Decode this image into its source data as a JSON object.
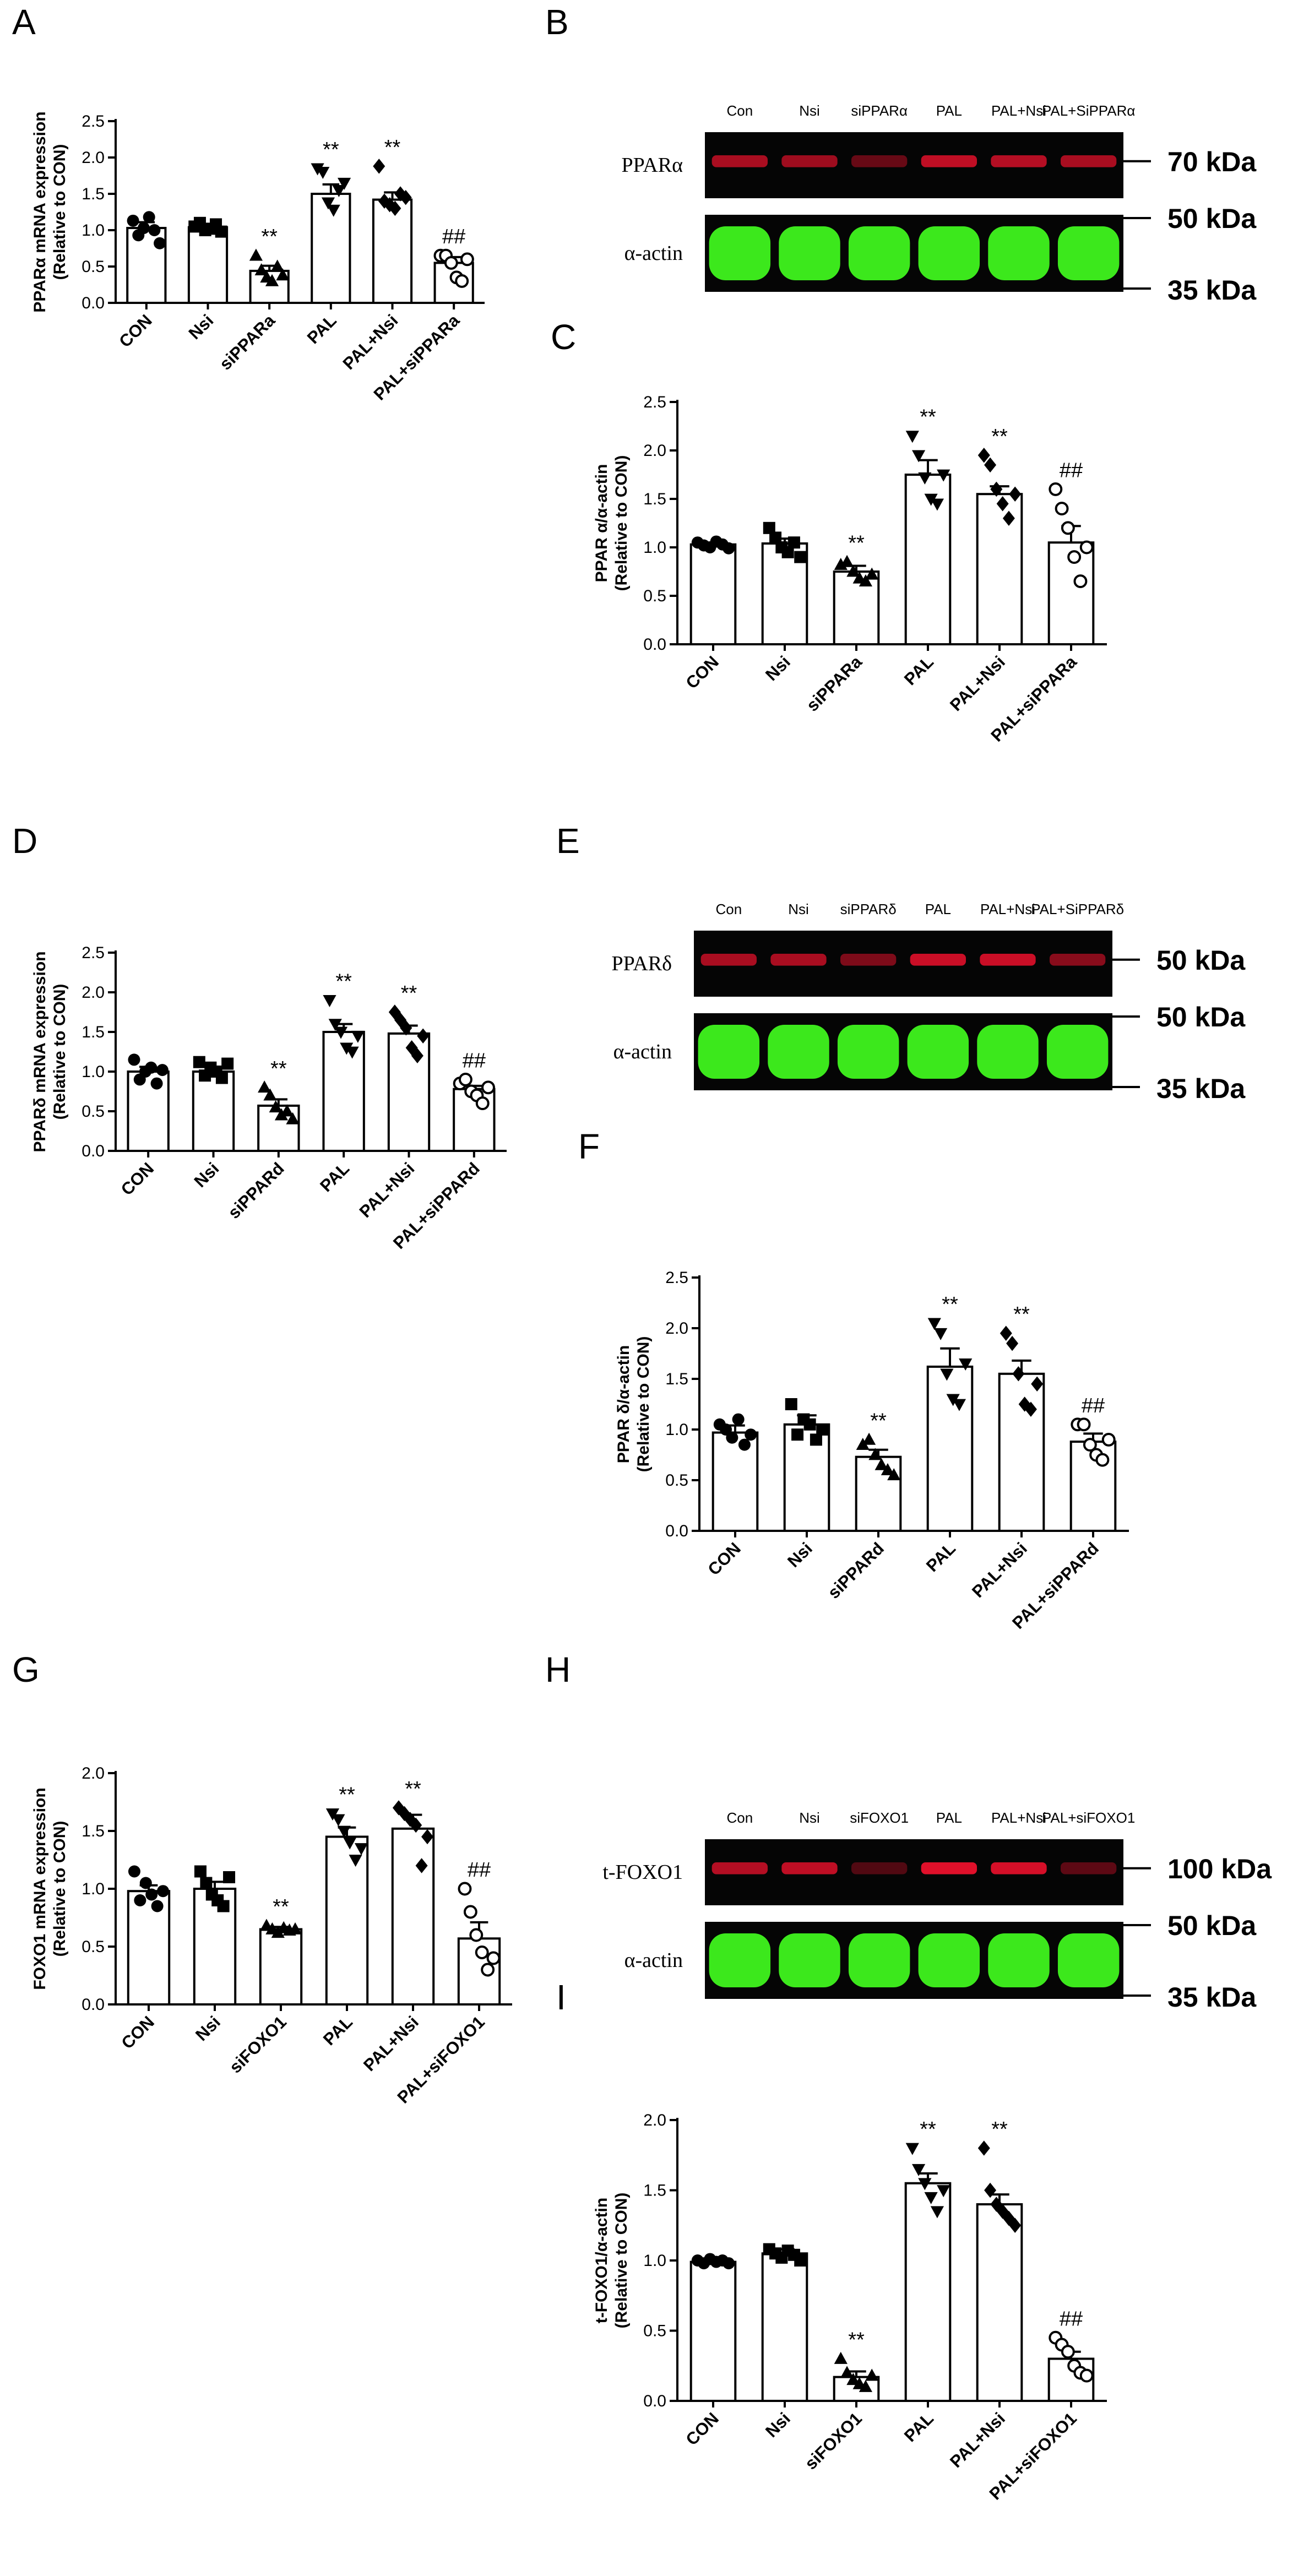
{
  "panels": {
    "a": "A",
    "b": "B",
    "c": "C",
    "d": "D",
    "e": "E",
    "f": "F",
    "g": "G",
    "h": "H",
    "i": "I"
  },
  "blots": {
    "b": {
      "lanes": [
        "Con",
        "Nsi",
        "siPPARα",
        "PAL",
        "PAL+Nsi",
        "PAL+SiPPARα"
      ],
      "top_row": "PPARα",
      "bottom_row": "α-actin",
      "top_marker": "70 kDa",
      "bottom_markers": [
        "50 kDa",
        "35 kDa"
      ],
      "top_color": "#e0102a",
      "bottom_color": "#3ce81c",
      "top_intensity": [
        0.75,
        0.7,
        0.45,
        0.85,
        0.8,
        0.75
      ]
    },
    "e": {
      "lanes": [
        "Con",
        "Nsi",
        "siPPARδ",
        "PAL",
        "PAL+Nsi",
        "PAL+SiPPARδ"
      ],
      "top_row": "PPARδ",
      "bottom_row": "α-actin",
      "top_marker": "50 kDa",
      "bottom_markers": [
        "50 kDa",
        "35 kDa"
      ],
      "top_color": "#e0102a",
      "bottom_color": "#3ce81c",
      "top_intensity": [
        0.75,
        0.75,
        0.55,
        0.9,
        0.9,
        0.6
      ]
    },
    "h": {
      "lanes": [
        "Con",
        "Nsi",
        "siFOXO1",
        "PAL",
        "PAL+Nsi",
        "PAL+siFOXO1"
      ],
      "top_row": "t-FOXO1",
      "bottom_row": "α-actin",
      "top_marker": "100 kDa",
      "bottom_markers": [
        "50 kDa",
        "35 kDa"
      ],
      "top_color": "#e0102a",
      "bottom_color": "#3ce81c",
      "top_intensity": [
        0.8,
        0.85,
        0.35,
        1.0,
        0.95,
        0.4
      ]
    }
  },
  "chart_data": [
    {
      "id": "A",
      "type": "bar",
      "categories": [
        "CON",
        "Nsi",
        "siPPARa",
        "PAL",
        "PAL+Nsi",
        "PAL+siPPARa"
      ],
      "ylabel_lines": [
        "PPARα mRNA expression",
        "(Relative to CON)"
      ],
      "ylim": [
        0,
        2.5
      ],
      "yticks": [
        0,
        0.5,
        1,
        1.5,
        2,
        2.5
      ],
      "ytick_labels": [
        "0.0",
        "0.5",
        "1.0",
        "1.5",
        "2.0",
        "2.5"
      ],
      "values": [
        1.03,
        1.04,
        0.44,
        1.5,
        1.42,
        0.55
      ],
      "sem": [
        0.08,
        0.04,
        0.07,
        0.13,
        0.1,
        0.08
      ],
      "points": [
        [
          1.13,
          0.93,
          1.03,
          1.18,
          1.0,
          0.82
        ],
        [
          1.05,
          1.1,
          1.0,
          1.02,
          1.08,
          0.98
        ],
        [
          0.65,
          0.45,
          0.35,
          0.3,
          0.5,
          0.38
        ],
        [
          1.85,
          1.8,
          1.38,
          1.28,
          1.55,
          1.65
        ],
        [
          1.88,
          1.4,
          1.35,
          1.3,
          1.5,
          1.45
        ],
        [
          0.65,
          0.65,
          0.55,
          0.35,
          0.3,
          0.6
        ]
      ],
      "markers": [
        "circle",
        "square",
        "triangle",
        "tri-down",
        "diamond",
        "open-circle"
      ],
      "annotations": [
        "",
        "",
        "**",
        "**",
        "**",
        "##"
      ]
    },
    {
      "id": "C",
      "type": "bar",
      "categories": [
        "CON",
        "Nsi",
        "siPPARa",
        "PAL",
        "PAL+Nsi",
        "PAL+siPPARa"
      ],
      "ylabel_lines": [
        "PPAR α/α-actin",
        "(Relative to CON)"
      ],
      "ylim": [
        0,
        2.5
      ],
      "yticks": [
        0,
        0.5,
        1,
        1.5,
        2,
        2.5
      ],
      "ytick_labels": [
        "0.0",
        "0.5",
        "1.0",
        "1.5",
        "2.0",
        "2.5"
      ],
      "values": [
        1.03,
        1.04,
        0.75,
        1.75,
        1.55,
        1.05
      ],
      "sem": [
        0.02,
        0.05,
        0.06,
        0.15,
        0.08,
        0.17
      ],
      "points": [
        [
          1.05,
          1.02,
          1.0,
          1.06,
          1.03,
          0.99
        ],
        [
          1.2,
          1.1,
          1.0,
          0.95,
          1.05,
          0.9
        ],
        [
          0.82,
          0.85,
          0.75,
          0.68,
          0.65,
          0.72
        ],
        [
          2.15,
          1.95,
          1.72,
          1.5,
          1.45,
          1.75
        ],
        [
          1.95,
          1.85,
          1.6,
          1.45,
          1.3,
          1.55
        ],
        [
          1.6,
          1.4,
          1.2,
          0.9,
          0.65,
          1.0
        ]
      ],
      "markers": [
        "circle",
        "square",
        "triangle",
        "tri-down",
        "diamond",
        "open-circle"
      ],
      "annotations": [
        "",
        "",
        "**",
        "**",
        "**",
        "##"
      ]
    },
    {
      "id": "D",
      "type": "bar",
      "categories": [
        "CON",
        "Nsi",
        "siPPARd",
        "PAL",
        "PAL+Nsi",
        "PAL+siPPARd"
      ],
      "ylabel_lines": [
        "PPARδ mRNA expression",
        "(Relative to CON)"
      ],
      "ylim": [
        0,
        2.5
      ],
      "yticks": [
        0,
        0.5,
        1,
        1.5,
        2,
        2.5
      ],
      "ytick_labels": [
        "0.0",
        "0.5",
        "1.0",
        "1.5",
        "2.0",
        "2.5"
      ],
      "values": [
        1.0,
        1.0,
        0.57,
        1.5,
        1.48,
        0.78
      ],
      "sem": [
        0.06,
        0.04,
        0.08,
        0.1,
        0.1,
        0.04
      ],
      "points": [
        [
          1.15,
          0.9,
          1.0,
          1.05,
          0.85,
          1.02
        ],
        [
          1.12,
          0.95,
          1.05,
          1.0,
          0.92,
          1.1
        ],
        [
          0.8,
          0.7,
          0.55,
          0.45,
          0.5,
          0.4
        ],
        [
          1.9,
          1.6,
          1.5,
          1.3,
          1.25,
          1.45
        ],
        [
          1.75,
          1.65,
          1.55,
          1.3,
          1.2,
          1.45
        ],
        [
          0.85,
          0.9,
          0.75,
          0.7,
          0.6,
          0.8
        ]
      ],
      "markers": [
        "circle",
        "square",
        "triangle",
        "tri-down",
        "diamond",
        "open-circle"
      ],
      "annotations": [
        "",
        "",
        "**",
        "**",
        "**",
        "##"
      ]
    },
    {
      "id": "F",
      "type": "bar",
      "categories": [
        "CON",
        "Nsi",
        "siPPARd",
        "PAL",
        "PAL+Nsi",
        "PAL+siPPARd"
      ],
      "ylabel_lines": [
        "PPAR δ/α-actin",
        "(Relative to CON)"
      ],
      "ylim": [
        0,
        2.5
      ],
      "yticks": [
        0,
        0.5,
        1,
        1.5,
        2,
        2.5
      ],
      "ytick_labels": [
        "0.0",
        "0.5",
        "1.0",
        "1.5",
        "2.0",
        "2.5"
      ],
      "values": [
        0.97,
        1.05,
        0.73,
        1.62,
        1.55,
        0.88
      ],
      "sem": [
        0.07,
        0.09,
        0.07,
        0.18,
        0.13,
        0.08
      ],
      "points": [
        [
          1.05,
          1.0,
          0.92,
          1.1,
          0.85,
          0.95
        ],
        [
          1.25,
          0.95,
          1.1,
          1.05,
          0.9,
          1.0
        ],
        [
          0.85,
          0.9,
          0.75,
          0.65,
          0.6,
          0.55
        ],
        [
          2.05,
          1.95,
          1.55,
          1.3,
          1.25,
          1.65
        ],
        [
          1.95,
          1.85,
          1.55,
          1.25,
          1.2,
          1.45
        ],
        [
          1.05,
          1.05,
          0.85,
          0.75,
          0.7,
          0.9
        ]
      ],
      "markers": [
        "circle",
        "square",
        "triangle",
        "tri-down",
        "diamond",
        "open-circle"
      ],
      "annotations": [
        "",
        "",
        "**",
        "**",
        "**",
        "##"
      ]
    },
    {
      "id": "G",
      "type": "bar",
      "categories": [
        "CON",
        "Nsi",
        "siFOXO1",
        "PAL",
        "PAL+Nsi",
        "PAL+siFOXO1"
      ],
      "ylabel_lines": [
        "FOXO1 mRNA expression",
        "(Relative to CON)"
      ],
      "ylim": [
        0,
        2.0
      ],
      "yticks": [
        0,
        0.5,
        1,
        1.5,
        2
      ],
      "ytick_labels": [
        "0.0",
        "0.5",
        "1.0",
        "1.5",
        "2.0"
      ],
      "values": [
        0.98,
        1.0,
        0.65,
        1.45,
        1.52,
        0.57
      ],
      "sem": [
        0.05,
        0.06,
        0.02,
        0.08,
        0.12,
        0.14
      ],
      "points": [
        [
          1.15,
          0.9,
          1.05,
          0.95,
          0.85,
          0.98
        ],
        [
          1.15,
          1.05,
          0.95,
          0.9,
          0.85,
          1.1
        ],
        [
          0.68,
          0.65,
          0.62,
          0.66,
          0.64,
          0.65
        ],
        [
          1.65,
          1.6,
          1.5,
          1.4,
          1.25,
          1.35
        ],
        [
          1.7,
          1.65,
          1.6,
          1.55,
          1.2,
          1.45
        ],
        [
          1.0,
          0.8,
          0.6,
          0.45,
          0.3,
          0.4
        ]
      ],
      "markers": [
        "circle",
        "square",
        "triangle",
        "tri-down",
        "diamond",
        "open-circle"
      ],
      "annotations": [
        "",
        "",
        "**",
        "**",
        "**",
        "##"
      ]
    },
    {
      "id": "I",
      "type": "bar",
      "categories": [
        "CON",
        "Nsi",
        "siFOXO1",
        "PAL",
        "PAL+Nsi",
        "PAL+siFOXO1"
      ],
      "ylabel_lines": [
        "t-FOXO1/α-actin",
        "(Relative to CON)"
      ],
      "ylim": [
        0,
        2.0
      ],
      "yticks": [
        0,
        0.5,
        1,
        1.5,
        2
      ],
      "ytick_labels": [
        "0.0",
        "0.5",
        "1.0",
        "1.5",
        "2.0"
      ],
      "values": [
        0.99,
        1.05,
        0.17,
        1.55,
        1.4,
        0.3
      ],
      "sem": [
        0.01,
        0.03,
        0.04,
        0.07,
        0.07,
        0.05
      ],
      "points": [
        [
          1.0,
          0.98,
          1.01,
          0.99,
          1.0,
          0.98
        ],
        [
          1.08,
          1.05,
          1.02,
          1.07,
          1.04,
          1.0
        ],
        [
          0.3,
          0.2,
          0.15,
          0.12,
          0.1,
          0.18
        ],
        [
          1.8,
          1.65,
          1.55,
          1.45,
          1.35,
          1.5
        ],
        [
          1.8,
          1.5,
          1.4,
          1.35,
          1.3,
          1.25
        ],
        [
          0.45,
          0.4,
          0.35,
          0.25,
          0.2,
          0.18
        ]
      ],
      "markers": [
        "circle",
        "square",
        "triangle",
        "tri-down",
        "diamond",
        "open-circle"
      ],
      "annotations": [
        "",
        "",
        "**",
        "**",
        "**",
        "##"
      ]
    }
  ]
}
